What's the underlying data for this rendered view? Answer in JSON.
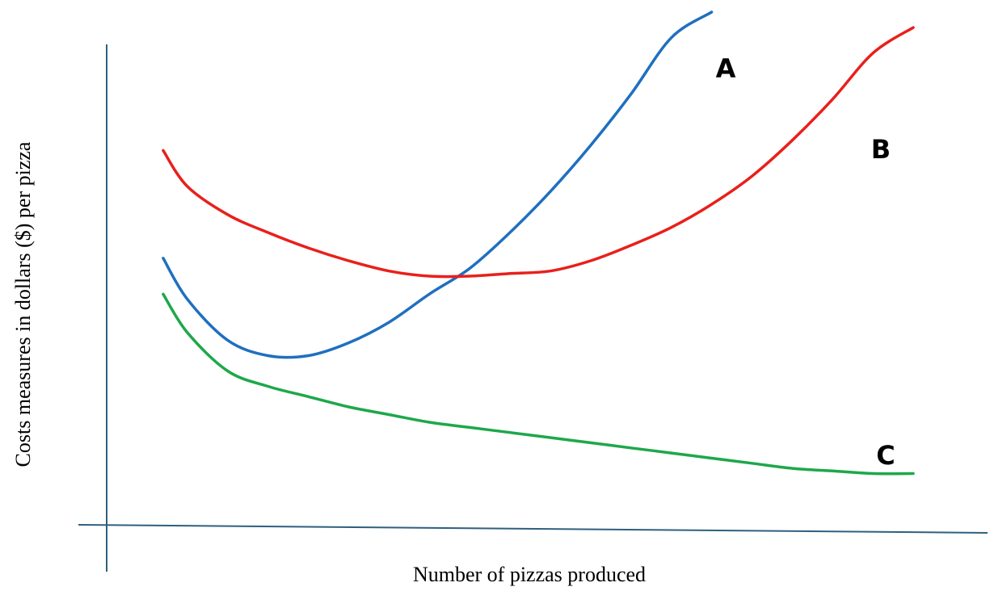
{
  "chart_data": {
    "type": "line",
    "title": "",
    "xlabel": "Number of pizzas produced",
    "ylabel": "Costs measures in dollars ($) per pizza",
    "xlim": [
      0,
      10
    ],
    "ylim": [
      0,
      10
    ],
    "grid": false,
    "legend": "none",
    "series": [
      {
        "name": "A",
        "color": "#1f6fbf",
        "points": [
          [
            0.7,
            5.2
          ],
          [
            1.0,
            4.4
          ],
          [
            1.5,
            3.6
          ],
          [
            2.0,
            3.3
          ],
          [
            2.5,
            3.3
          ],
          [
            3.0,
            3.55
          ],
          [
            3.5,
            3.95
          ],
          [
            4.0,
            4.5
          ],
          [
            4.5,
            5.0
          ],
          [
            5.0,
            5.7
          ],
          [
            5.5,
            6.5
          ],
          [
            6.0,
            7.4
          ],
          [
            6.5,
            8.4
          ],
          [
            7.0,
            9.5
          ],
          [
            7.5,
            10.0
          ]
        ]
      },
      {
        "name": "B",
        "color": "#e8201c",
        "points": [
          [
            0.7,
            7.3
          ],
          [
            1.0,
            6.6
          ],
          [
            1.5,
            6.05
          ],
          [
            2.0,
            5.7
          ],
          [
            2.5,
            5.4
          ],
          [
            3.0,
            5.15
          ],
          [
            3.5,
            4.95
          ],
          [
            4.0,
            4.85
          ],
          [
            4.5,
            4.85
          ],
          [
            5.0,
            4.9
          ],
          [
            5.5,
            4.95
          ],
          [
            6.0,
            5.15
          ],
          [
            6.5,
            5.45
          ],
          [
            7.0,
            5.8
          ],
          [
            7.5,
            6.25
          ],
          [
            8.0,
            6.8
          ],
          [
            8.5,
            7.5
          ],
          [
            9.0,
            8.3
          ],
          [
            9.5,
            9.2
          ],
          [
            10.0,
            9.7
          ]
        ]
      },
      {
        "name": "C",
        "color": "#1da84a",
        "points": [
          [
            0.7,
            4.5
          ],
          [
            1.0,
            3.75
          ],
          [
            1.5,
            3.0
          ],
          [
            2.0,
            2.7
          ],
          [
            2.5,
            2.5
          ],
          [
            3.0,
            2.3
          ],
          [
            3.5,
            2.15
          ],
          [
            4.0,
            2.0
          ],
          [
            4.5,
            1.9
          ],
          [
            5.0,
            1.8
          ],
          [
            5.5,
            1.7
          ],
          [
            6.0,
            1.6
          ],
          [
            6.5,
            1.5
          ],
          [
            7.0,
            1.4
          ],
          [
            7.5,
            1.3
          ],
          [
            8.0,
            1.2
          ],
          [
            8.5,
            1.1
          ],
          [
            9.0,
            1.05
          ],
          [
            9.5,
            1.0
          ],
          [
            10.0,
            1.0
          ]
        ]
      }
    ]
  }
}
